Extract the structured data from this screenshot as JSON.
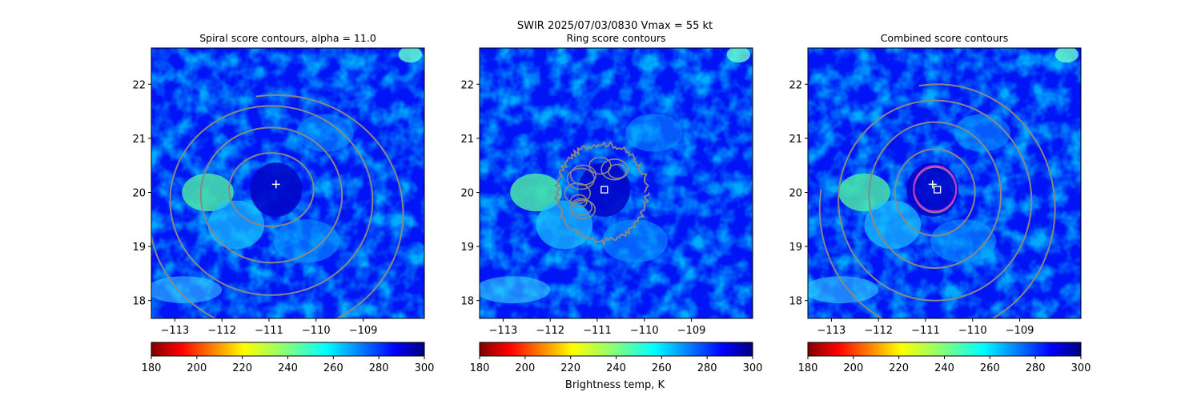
{
  "figure": {
    "suptitle_line1": "SWIR  2025/07/03/0830    Vmax = 55 kt",
    "colorbar_label": "Brightness temp, K"
  },
  "chart_data": [
    {
      "type": "heatmap",
      "title": "Spiral score contours, alpha = 11.0",
      "xlim": [
        -113.5,
        -107.7
      ],
      "ylim": [
        17.67,
        22.67
      ],
      "xticks": [
        -113,
        -112,
        -111,
        -110,
        -109
      ],
      "yticks": [
        18,
        19,
        20,
        21,
        22
      ],
      "grid": false,
      "field": "Brightness temp, K",
      "colormap": "jet_r",
      "clim": [
        180,
        300
      ],
      "colorbar_ticks": [
        180,
        200,
        220,
        240,
        260,
        280,
        300
      ],
      "contour_color": "#888888",
      "contours": [
        {
          "center": [
            -110.95,
            20.05
          ],
          "rx": 0.9,
          "ry": 0.68
        },
        {
          "center": [
            -110.95,
            19.95
          ],
          "rx": 1.5,
          "ry": 1.25
        },
        {
          "center": [
            -110.95,
            19.85
          ],
          "rx": 2.15,
          "ry": 1.75
        },
        {
          "center": [
            -110.85,
            19.6
          ],
          "rx": 2.7,
          "ry": 2.2,
          "open": true
        }
      ],
      "markers": [
        {
          "symbol": "plus",
          "lon": -110.85,
          "lat": 20.15,
          "color": "#ffffff"
        }
      ]
    },
    {
      "type": "heatmap",
      "title": "Ring score contours",
      "xlim": [
        -113.5,
        -107.7
      ],
      "ylim": [
        17.67,
        22.67
      ],
      "xticks": [
        -113,
        -112,
        -111,
        -110,
        -109
      ],
      "yticks": [
        18,
        19,
        20,
        21,
        22
      ],
      "grid": false,
      "field": "Brightness temp, K",
      "colormap": "jet_r",
      "clim": [
        180,
        300
      ],
      "colorbar_ticks": [
        180,
        200,
        220,
        240,
        260,
        280,
        300
      ],
      "contour_color": "#888888",
      "contours": [
        {
          "center": [
            -110.9,
            20.0
          ],
          "rx": 0.95,
          "ry": 0.9,
          "noisy": true
        }
      ],
      "markers": [
        {
          "symbol": "square",
          "lon": -110.85,
          "lat": 20.05,
          "color": "#ffffff"
        }
      ]
    },
    {
      "type": "heatmap",
      "title": "Combined score contours",
      "xlim": [
        -113.5,
        -107.7
      ],
      "ylim": [
        17.67,
        22.67
      ],
      "xticks": [
        -113,
        -112,
        -111,
        -110,
        -109
      ],
      "yticks": [
        18,
        19,
        20,
        21,
        22
      ],
      "grid": false,
      "field": "Brightness temp, K",
      "colormap": "jet_r",
      "clim": [
        180,
        300
      ],
      "colorbar_ticks": [
        180,
        200,
        220,
        240,
        260,
        280,
        300
      ],
      "contour_color": "#888888",
      "contours": [
        {
          "center": [
            -110.8,
            20.05
          ],
          "rx": 0.45,
          "ry": 0.42
        },
        {
          "center": [
            -110.8,
            20.0
          ],
          "rx": 0.85,
          "ry": 0.8
        },
        {
          "center": [
            -110.8,
            19.95
          ],
          "rx": 1.4,
          "ry": 1.35
        },
        {
          "center": [
            -110.8,
            19.85
          ],
          "rx": 2.05,
          "ry": 1.85
        },
        {
          "center": [
            -110.75,
            19.7
          ],
          "rx": 2.5,
          "ry": 2.3,
          "open": true
        }
      ],
      "rings": [
        {
          "center": [
            -110.8,
            20.07
          ],
          "r_lon": 0.45,
          "r_lat": 0.42,
          "color": "#cc33cc"
        }
      ],
      "markers": [
        {
          "symbol": "plus",
          "lon": -110.85,
          "lat": 20.15,
          "color": "#ffffff"
        },
        {
          "symbol": "square",
          "lon": -110.75,
          "lat": 20.05,
          "color": "#ffffff"
        }
      ]
    }
  ]
}
